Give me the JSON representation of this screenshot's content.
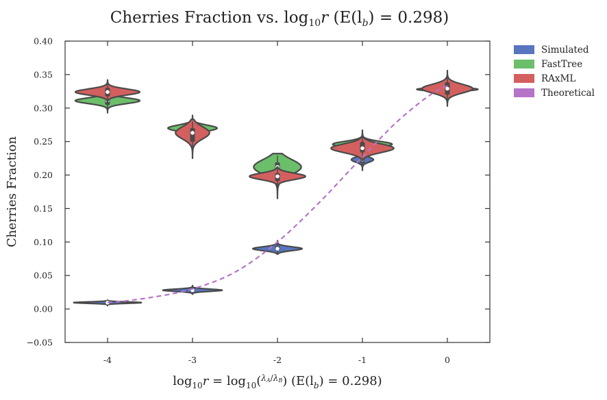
{
  "chart_data": {
    "type": "violin",
    "title": "Cherries Fraction vs. log₁₀r (E(lᵦ) = 0.298)",
    "title_parts": {
      "a": "Cherries Fraction vs. ",
      "b": "log",
      "b_sub": "10",
      "c": "r",
      "d": " (E(l",
      "d_sub": "b",
      "e": ") = 0.298)"
    },
    "xlabel": "log₁₀r = log₁₀(λ_A/λ_B) (E(l_b) = 0.298)",
    "xlabel_parts": {
      "log": "log",
      "sub10": "10",
      "r": "r",
      "eq": " = log",
      "paren_open": "(",
      "lamA": "λ",
      "subA": "A",
      "lamB": "λ",
      "subB": "B",
      "paren_close": ")",
      "tail": " (E(l",
      "tail_sub": "b",
      "tail_end": ") = 0.298)"
    },
    "ylabel": "Cherries Fraction",
    "ylim": [
      -0.05,
      0.4
    ],
    "yticks": [
      "−0.05",
      "0.00",
      "0.05",
      "0.10",
      "0.15",
      "0.20",
      "0.25",
      "0.30",
      "0.35",
      "0.40"
    ],
    "ytick_values": [
      -0.05,
      0.0,
      0.05,
      0.1,
      0.15,
      0.2,
      0.25,
      0.3,
      0.35,
      0.4
    ],
    "categories": [
      "-4",
      "-3",
      "-2",
      "-1",
      "0"
    ],
    "grid": false,
    "legend_position": "outside-top-right",
    "colors": {
      "Simulated": "#5875c0",
      "FastTree": "#6bbf6a",
      "RAxML": "#d3605f",
      "Theoretical": "#b674c9",
      "outline": "#4a4a4a"
    },
    "series": [
      {
        "name": "Simulated",
        "violins": [
          {
            "category": "-4",
            "center": 0.0095,
            "low": 0.005,
            "high": 0.013,
            "halfwidth": 0.4
          },
          {
            "category": "-3",
            "center": 0.028,
            "low": 0.022,
            "high": 0.035,
            "halfwidth": 0.35
          },
          {
            "category": "-2",
            "center": 0.09,
            "low": 0.082,
            "high": 0.102,
            "halfwidth": 0.29
          },
          {
            "category": "-1",
            "center": 0.223,
            "low": 0.207,
            "high": 0.238,
            "halfwidth": 0.13
          }
        ]
      },
      {
        "name": "FastTree",
        "violins": [
          {
            "category": "-4",
            "center": 0.311,
            "low": 0.293,
            "high": 0.322,
            "halfwidth": 0.38
          },
          {
            "category": "-3",
            "center": 0.27,
            "low": 0.255,
            "high": 0.289,
            "halfwidth": 0.29
          },
          {
            "category": "-2",
            "center": 0.212,
            "low": 0.165,
            "high": 0.232,
            "halfwidth": 0.28
          },
          {
            "category": "-1",
            "center": 0.246,
            "low": 0.228,
            "high": 0.262,
            "halfwidth": 0.35
          },
          {
            "category": "0",
            "center": 0.328,
            "low": 0.318,
            "high": 0.338,
            "halfwidth": 0.36
          }
        ]
      },
      {
        "name": "RAxML",
        "violins": [
          {
            "category": "-4",
            "center": 0.324,
            "low": 0.305,
            "high": 0.342,
            "halfwidth": 0.38
          },
          {
            "category": "-3",
            "center": 0.263,
            "low": 0.225,
            "high": 0.283,
            "halfwidth": 0.2
          },
          {
            "category": "-2",
            "center": 0.198,
            "low": 0.178,
            "high": 0.212,
            "halfwidth": 0.33
          },
          {
            "category": "-1",
            "center": 0.24,
            "low": 0.222,
            "high": 0.267,
            "halfwidth": 0.37
          },
          {
            "category": "0",
            "center": 0.329,
            "low": 0.303,
            "high": 0.356,
            "halfwidth": 0.3
          }
        ]
      },
      {
        "name": "Theoretical",
        "line": {
          "x": [
            -4,
            -3.5,
            -3,
            -2.5,
            -2,
            -1.5,
            -1,
            -0.5,
            0
          ],
          "y": [
            0.0098,
            0.017,
            0.03,
            0.055,
            0.1,
            0.16,
            0.227,
            0.29,
            0.333
          ]
        }
      }
    ]
  }
}
